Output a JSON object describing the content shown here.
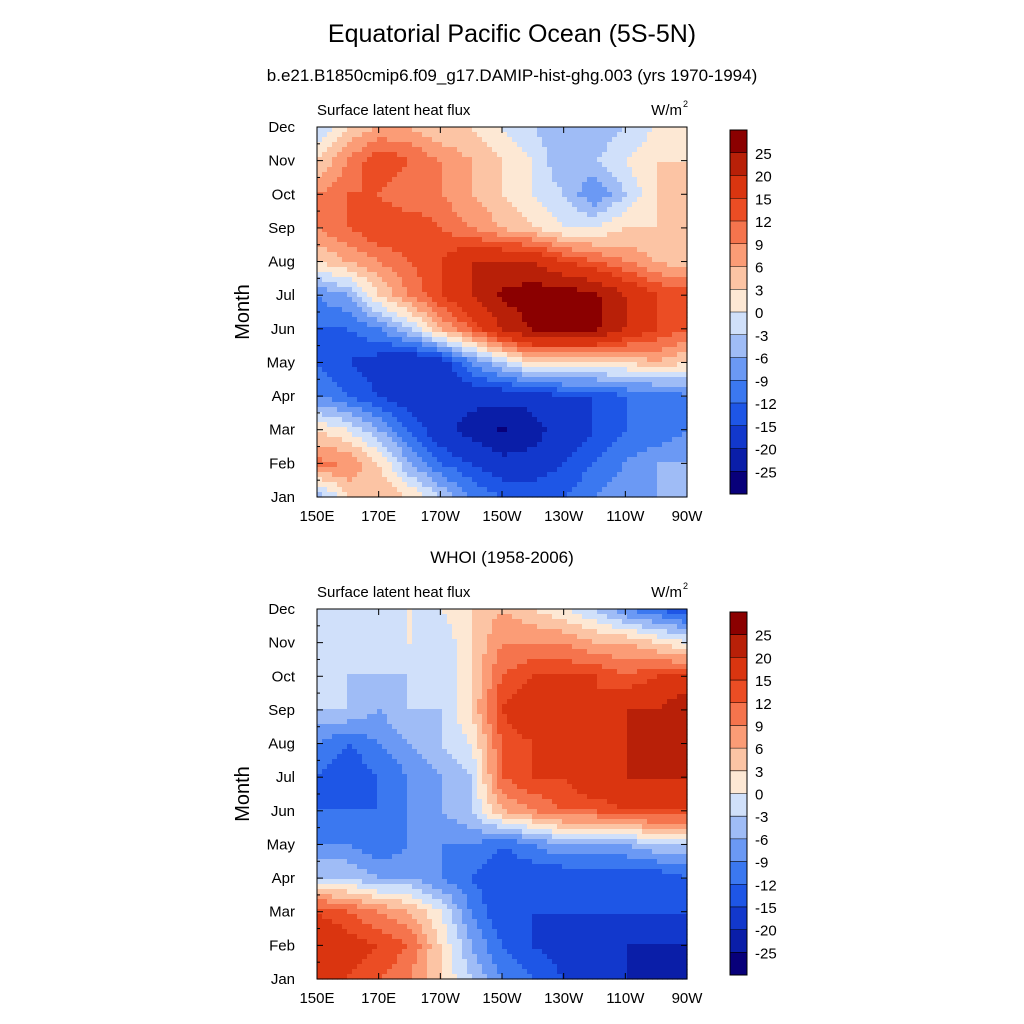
{
  "header": {
    "title": "Equatorial Pacific Ocean (5S-5N)",
    "subtitle": "b.e21.B1850cmip6.f09_g17.DAMIP-hist-ghg.003 (yrs 1970-1994)"
  },
  "colors": {
    "levels": [
      "#08007a",
      "#0a1ea8",
      "#1238cc",
      "#1e56e6",
      "#3b78f0",
      "#6b99f4",
      "#9fbcf6",
      "#d0e0fa",
      "#fde8d4",
      "#fcc4a4",
      "#fb9c76",
      "#f5744d",
      "#eb4d24",
      "#da3510",
      "#b82008",
      "#8b0000"
    ]
  },
  "chart_data": [
    {
      "type": "heatmap",
      "panel_title": "",
      "left_label": "Surface latent heat flux",
      "units_label": "W/m",
      "units_superscript": "2",
      "ylabel": "Month",
      "x_ticks": [
        "150E",
        "170E",
        "170W",
        "150W",
        "130W",
        "110W",
        "90W"
      ],
      "y_ticks": [
        "Jan",
        "Feb",
        "Mar",
        "Apr",
        "May",
        "Jun",
        "Jul",
        "Aug",
        "Sep",
        "Oct",
        "Nov",
        "Dec"
      ],
      "x_range": [
        "150E",
        "90W"
      ],
      "colorbar_labels": [
        "25",
        "20",
        "15",
        "12",
        "9",
        "6",
        "3",
        "0",
        "-3",
        "-6",
        "-9",
        "-12",
        "-15",
        "-20",
        "-25"
      ],
      "colorbar_boundaries": [
        -25,
        -20,
        -15,
        -12,
        -9,
        -6,
        -3,
        0,
        3,
        6,
        9,
        12,
        15,
        20,
        25
      ],
      "x": [
        150,
        160,
        170,
        180,
        190,
        200,
        210,
        220,
        230,
        240,
        250,
        260,
        270
      ],
      "y": [
        1,
        2,
        3,
        4,
        5,
        6,
        7,
        8,
        9,
        10,
        11,
        12
      ],
      "values": [
        [
          -6,
          3,
          6,
          3,
          -3,
          -9,
          -12,
          -12,
          -12,
          -9,
          -6,
          -6,
          -3
        ],
        [
          10,
          9,
          3,
          -6,
          -12,
          -15,
          -18,
          -18,
          -15,
          -12,
          -9,
          -6,
          -6
        ],
        [
          3,
          0,
          -6,
          -12,
          -18,
          -22,
          -26,
          -22,
          -18,
          -15,
          -12,
          -12,
          -9
        ],
        [
          -9,
          -12,
          -15,
          -18,
          -18,
          -18,
          -18,
          -18,
          -15,
          -15,
          -12,
          -12,
          -9
        ],
        [
          -12,
          -15,
          -17,
          -20,
          -18,
          -9,
          -3,
          3,
          3,
          3,
          3,
          6,
          3
        ],
        [
          -12,
          -12,
          -9,
          -3,
          6,
          12,
          20,
          26,
          26,
          26,
          20,
          15,
          12
        ],
        [
          -9,
          -6,
          3,
          9,
          15,
          20,
          26,
          28,
          28,
          26,
          20,
          15,
          15
        ],
        [
          3,
          6,
          9,
          12,
          15,
          20,
          20,
          20,
          15,
          12,
          9,
          6,
          3
        ],
        [
          9,
          12,
          15,
          15,
          12,
          9,
          6,
          3,
          0,
          0,
          3,
          3,
          3
        ],
        [
          9,
          12,
          12,
          9,
          9,
          6,
          3,
          0,
          -3,
          -9,
          -3,
          3,
          3
        ],
        [
          3,
          9,
          15,
          12,
          9,
          6,
          3,
          0,
          -6,
          -3,
          0,
          3,
          3
        ],
        [
          -3,
          3,
          6,
          6,
          3,
          3,
          0,
          -3,
          -6,
          -6,
          -3,
          0,
          3
        ]
      ]
    },
    {
      "type": "heatmap",
      "panel_title": "WHOI (1958-2006)",
      "left_label": "Surface latent heat flux",
      "units_label": "W/m",
      "units_superscript": "2",
      "ylabel": "Month",
      "x_ticks": [
        "150E",
        "170E",
        "170W",
        "150W",
        "130W",
        "110W",
        "90W"
      ],
      "y_ticks": [
        "Jan",
        "Feb",
        "Mar",
        "Apr",
        "May",
        "Jun",
        "Jul",
        "Aug",
        "Sep",
        "Oct",
        "Nov",
        "Dec"
      ],
      "x_range": [
        "150E",
        "90W"
      ],
      "colorbar_labels": [
        "25",
        "20",
        "15",
        "12",
        "9",
        "6",
        "3",
        "0",
        "-3",
        "-6",
        "-9",
        "-12",
        "-15",
        "-20",
        "-25"
      ],
      "colorbar_boundaries": [
        -25,
        -20,
        -15,
        -12,
        -9,
        -6,
        -3,
        0,
        3,
        6,
        9,
        12,
        15,
        20,
        25
      ],
      "x": [
        150,
        160,
        170,
        180,
        190,
        200,
        210,
        220,
        230,
        240,
        250,
        260,
        270
      ],
      "y": [
        1,
        2,
        3,
        4,
        5,
        6,
        7,
        8,
        9,
        10,
        11,
        12
      ],
      "values": [
        [
          15,
          15,
          12,
          9,
          3,
          -3,
          -9,
          -12,
          -15,
          -18,
          -20,
          -22,
          -25
        ],
        [
          20,
          17,
          15,
          12,
          3,
          -6,
          -12,
          -15,
          -17,
          -18,
          -20,
          -20,
          -20
        ],
        [
          15,
          12,
          9,
          6,
          0,
          -9,
          -15,
          -15,
          -15,
          -15,
          -15,
          -15,
          -15
        ],
        [
          -3,
          -3,
          -6,
          -6,
          -9,
          -12,
          -15,
          -15,
          -15,
          -15,
          -15,
          -15,
          -12
        ],
        [
          -9,
          -9,
          -12,
          -9,
          -9,
          -9,
          -12,
          -9,
          -6,
          -6,
          -6,
          -3,
          -3
        ],
        [
          -12,
          -12,
          -12,
          -9,
          -6,
          -3,
          6,
          9,
          12,
          12,
          15,
          15,
          15
        ],
        [
          -12,
          -15,
          -12,
          -9,
          -6,
          -3,
          12,
          15,
          15,
          20,
          20,
          20,
          20
        ],
        [
          -9,
          -12,
          -9,
          -6,
          -3,
          0,
          12,
          15,
          20,
          15,
          20,
          20,
          20
        ],
        [
          -3,
          -3,
          -6,
          -3,
          -3,
          3,
          15,
          20,
          15,
          15,
          20,
          20,
          25
        ],
        [
          -3,
          -3,
          -3,
          -3,
          -3,
          3,
          12,
          15,
          15,
          15,
          12,
          15,
          15
        ],
        [
          0,
          -3,
          -3,
          0,
          -3,
          3,
          9,
          9,
          9,
          6,
          6,
          3,
          0
        ],
        [
          -3,
          -3,
          -3,
          0,
          0,
          3,
          6,
          3,
          0,
          -3,
          -9,
          -12,
          -15
        ]
      ]
    }
  ]
}
